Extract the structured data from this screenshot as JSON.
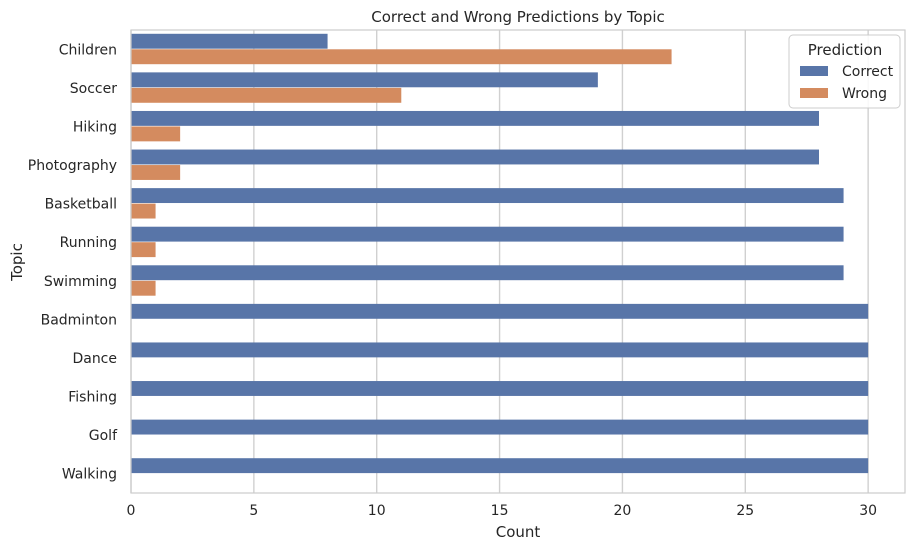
{
  "chart_data": {
    "type": "bar",
    "orientation": "horizontal",
    "title": "Correct and Wrong Predictions by Topic",
    "xlabel": "Count",
    "ylabel": "Topic",
    "xlim": [
      0,
      31.5
    ],
    "xticks": [
      0,
      5,
      10,
      15,
      20,
      25,
      30
    ],
    "grid": true,
    "legend": {
      "title": "Prediction",
      "position": "top-right"
    },
    "categories": [
      "Children",
      "Soccer",
      "Hiking",
      "Photography",
      "Basketball",
      "Running",
      "Swimming",
      "Badminton",
      "Dance",
      "Fishing",
      "Golf",
      "Walking"
    ],
    "series": [
      {
        "name": "Correct",
        "color": "#5875a8",
        "values": [
          8,
          19,
          28,
          28,
          29,
          29,
          29,
          30,
          30,
          30,
          30,
          30
        ]
      },
      {
        "name": "Wrong",
        "color": "#d48b5f",
        "values": [
          22,
          11,
          2,
          2,
          1,
          1,
          1,
          0,
          0,
          0,
          0,
          0
        ]
      }
    ]
  }
}
